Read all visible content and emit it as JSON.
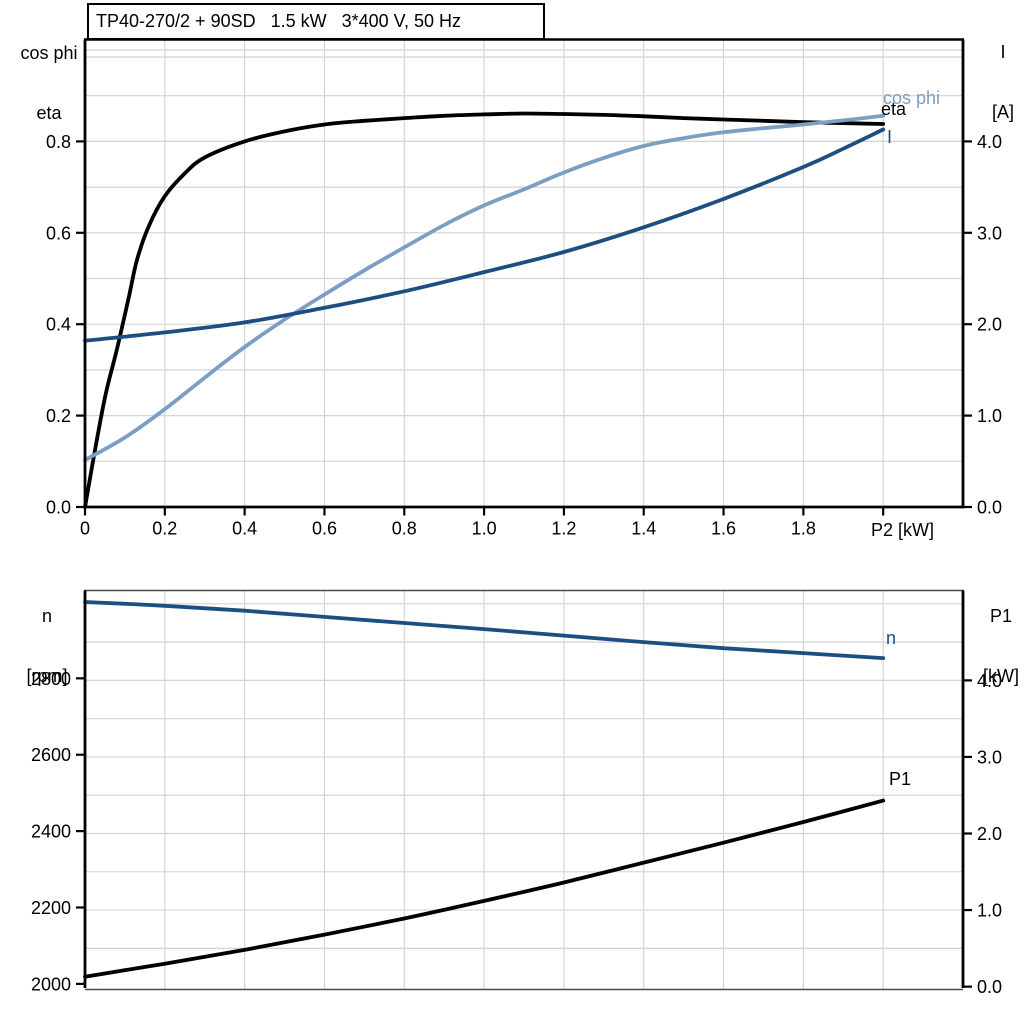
{
  "header": {
    "title": "TP40-270/2 + 90SD   1.5 kW   3*400 V, 50 Hz"
  },
  "axes_titles": {
    "top_left_line1": "cos phi",
    "top_left_line2": "eta",
    "top_right_line1": "I",
    "top_right_line2": "[A]",
    "bottom_left_line1": "n",
    "bottom_left_line2": "[rpm]",
    "bottom_right_line1": "P1",
    "bottom_right_line2": "[kW]",
    "x_title": "P2 [kW]"
  },
  "curve_labels": {
    "cos_phi": "cos phi",
    "eta": "eta",
    "current": "I",
    "speed": "n",
    "power_in": "P1"
  },
  "colors": {
    "black_curve": "#000000",
    "light_blue_curve": "#7b9fc4",
    "dark_blue_curve": "#1d4e81",
    "grid": "#d4d4d4",
    "frame": "#4a4a4a",
    "axis": "#000000"
  },
  "chart_data": [
    {
      "type": "line",
      "title": "TP40-270/2 + 90SD   1.5 kW   3*400 V, 50 Hz",
      "x_axis": {
        "label": "P2 [kW]",
        "min": 0,
        "max": 2.2,
        "grid_step": 0.2,
        "ticks": [
          0,
          0.2,
          0.4,
          0.6,
          0.8,
          1.0,
          1.2,
          1.4,
          1.6,
          1.8,
          2.0
        ],
        "tick_labels": [
          "0",
          "0.2",
          "0.4",
          "0.6",
          "0.8",
          "1.0",
          "1.2",
          "1.4",
          "1.6",
          "1.8",
          ""
        ]
      },
      "y_left_axis": {
        "label": "cos phi / eta",
        "min": 0,
        "max": 1.023,
        "grid_step": 0.1,
        "ticks": [
          0,
          0.2,
          0.4,
          0.6,
          0.8
        ],
        "tick_labels": [
          "0.0",
          "0.2",
          "0.4",
          "0.6",
          "0.8"
        ]
      },
      "y_right_axis": {
        "label": "I [A]",
        "min": 0,
        "max": 5.115,
        "ticks": [
          0,
          1,
          2,
          3,
          4
        ],
        "tick_labels": [
          "0.0",
          "1.0",
          "2.0",
          "3.0",
          "4.0"
        ]
      },
      "legend_position": "end-of-curve",
      "grid": true,
      "series": [
        {
          "name": "eta",
          "axis": "left",
          "color": "#000000",
          "points": [
            [
              0,
              0
            ],
            [
              0.02,
              0.1
            ],
            [
              0.05,
              0.24
            ],
            [
              0.08,
              0.345
            ],
            [
              0.11,
              0.46
            ],
            [
              0.13,
              0.54
            ],
            [
              0.16,
              0.615
            ],
            [
              0.2,
              0.68
            ],
            [
              0.25,
              0.73
            ],
            [
              0.3,
              0.765
            ],
            [
              0.4,
              0.8
            ],
            [
              0.5,
              0.822
            ],
            [
              0.6,
              0.837
            ],
            [
              0.7,
              0.845
            ],
            [
              0.8,
              0.851
            ],
            [
              0.9,
              0.856
            ],
            [
              1.0,
              0.859
            ],
            [
              1.1,
              0.861
            ],
            [
              1.2,
              0.86
            ],
            [
              1.3,
              0.858
            ],
            [
              1.4,
              0.855
            ],
            [
              1.5,
              0.851
            ],
            [
              1.6,
              0.848
            ],
            [
              1.7,
              0.845
            ],
            [
              1.8,
              0.842
            ],
            [
              1.9,
              0.84
            ],
            [
              2.0,
              0.838
            ]
          ]
        },
        {
          "name": "cos phi",
          "axis": "left",
          "color": "#7b9fc4",
          "points": [
            [
              0,
              0.103
            ],
            [
              0.1,
              0.152
            ],
            [
              0.2,
              0.214
            ],
            [
              0.3,
              0.283
            ],
            [
              0.4,
              0.35
            ],
            [
              0.5,
              0.41
            ],
            [
              0.6,
              0.465
            ],
            [
              0.7,
              0.518
            ],
            [
              0.8,
              0.568
            ],
            [
              0.9,
              0.617
            ],
            [
              1.0,
              0.66
            ],
            [
              1.1,
              0.695
            ],
            [
              1.2,
              0.732
            ],
            [
              1.3,
              0.764
            ],
            [
              1.4,
              0.79
            ],
            [
              1.5,
              0.807
            ],
            [
              1.6,
              0.82
            ],
            [
              1.7,
              0.829
            ],
            [
              1.8,
              0.837
            ],
            [
              1.9,
              0.846
            ],
            [
              2.0,
              0.856
            ]
          ]
        },
        {
          "name": "I",
          "axis": "right",
          "color": "#1d4e81",
          "points": [
            [
              0,
              1.82
            ],
            [
              0.2,
              1.91
            ],
            [
              0.4,
              2.02
            ],
            [
              0.6,
              2.18
            ],
            [
              0.8,
              2.36
            ],
            [
              1.0,
              2.57
            ],
            [
              1.2,
              2.79
            ],
            [
              1.4,
              3.06
            ],
            [
              1.6,
              3.37
            ],
            [
              1.8,
              3.72
            ],
            [
              1.9,
              3.92
            ],
            [
              2.0,
              4.13
            ]
          ]
        }
      ]
    },
    {
      "type": "line",
      "title": "",
      "x_axis": {
        "label": "",
        "min": 0,
        "max": 2.2,
        "grid_step": 0.2,
        "ticks": [],
        "tick_labels": []
      },
      "y_left_axis": {
        "label": "n [rpm]",
        "min": 1984,
        "max": 3030,
        "ticks": [
          2000,
          2200,
          2400,
          2600,
          2800
        ],
        "tick_labels": [
          "2000",
          "2200",
          "2400",
          "2600",
          "2800"
        ]
      },
      "y_right_axis": {
        "label": "P1 [kW]",
        "min": -0.044,
        "max": 5.174,
        "grid_step": 0.5,
        "ticks": [
          0,
          1,
          2,
          3,
          4
        ],
        "tick_labels": [
          "0.0",
          "1.0",
          "2.0",
          "3.0",
          "4.0"
        ]
      },
      "legend_position": "end-of-curve",
      "grid": true,
      "series": [
        {
          "name": "n",
          "axis": "left",
          "color": "#1d4e81",
          "points": [
            [
              0,
              3000
            ],
            [
              0.2,
              2990
            ],
            [
              0.4,
              2977
            ],
            [
              0.6,
              2961
            ],
            [
              0.8,
              2945
            ],
            [
              1.0,
              2929
            ],
            [
              1.2,
              2912
            ],
            [
              1.4,
              2895
            ],
            [
              1.6,
              2879
            ],
            [
              1.8,
              2866
            ],
            [
              2.0,
              2853
            ]
          ]
        },
        {
          "name": "P1",
          "axis": "right",
          "color": "#000000",
          "points": [
            [
              0,
              0.13
            ],
            [
              0.2,
              0.3
            ],
            [
              0.4,
              0.48
            ],
            [
              0.6,
              0.68
            ],
            [
              0.8,
              0.89
            ],
            [
              1.0,
              1.12
            ],
            [
              1.2,
              1.36
            ],
            [
              1.4,
              1.62
            ],
            [
              1.6,
              1.88
            ],
            [
              1.8,
              2.15
            ],
            [
              2.0,
              2.43
            ]
          ]
        }
      ]
    }
  ]
}
